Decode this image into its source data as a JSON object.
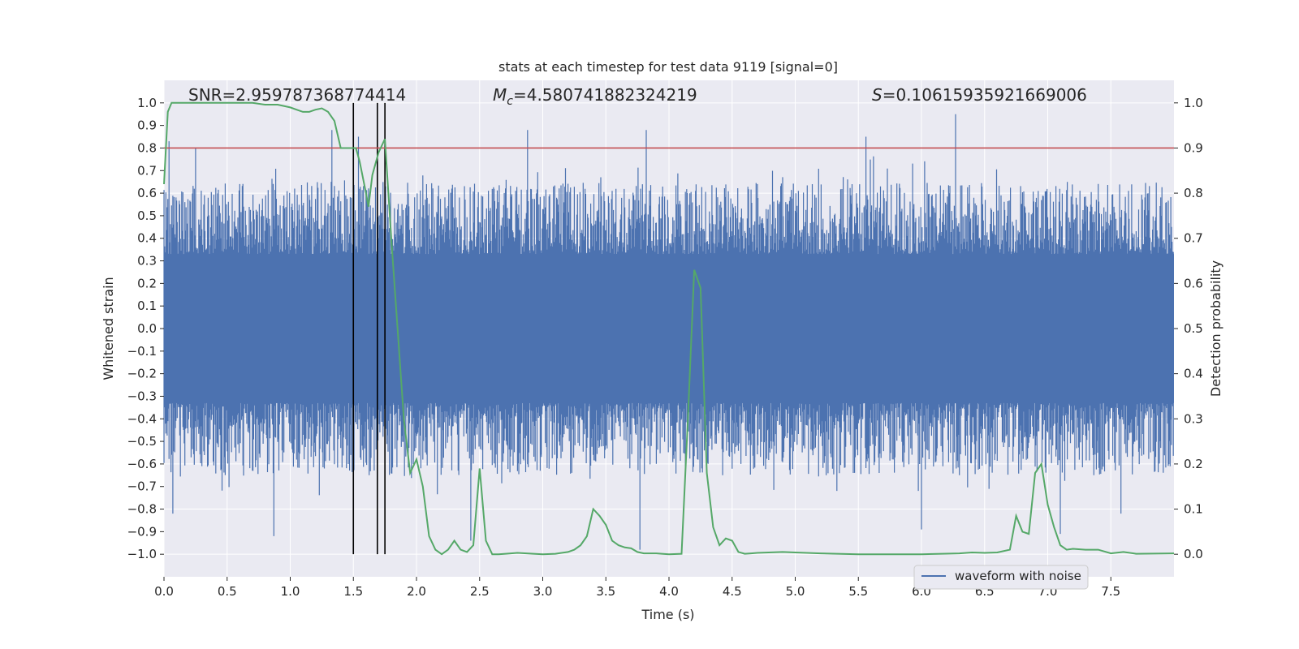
{
  "chart_data": {
    "type": "line",
    "title": "stats at each timestep for test data 9119 [signal=0]",
    "xlabel": "Time (s)",
    "ylabel_left": "Whitened strain",
    "ylabel_right": "Detection probability",
    "xlim": [
      0.0,
      8.0
    ],
    "ylim_left": [
      -1.1,
      1.1
    ],
    "ylim_right": [
      -0.05,
      1.05
    ],
    "x_ticks": [
      "0.0",
      "0.5",
      "1.0",
      "1.5",
      "2.0",
      "2.5",
      "3.0",
      "3.5",
      "4.0",
      "4.5",
      "5.0",
      "5.5",
      "6.0",
      "6.5",
      "7.0",
      "7.5"
    ],
    "x_tick_values": [
      0,
      0.5,
      1,
      1.5,
      2,
      2.5,
      3,
      3.5,
      4,
      4.5,
      5,
      5.5,
      6,
      6.5,
      7,
      7.5
    ],
    "y_left_ticks": [
      "1.0",
      "0.9",
      "0.8",
      "0.7",
      "0.6",
      "0.5",
      "0.4",
      "0.3",
      "0.2",
      "0.1",
      "0.0",
      "−0.1",
      "−0.2",
      "−0.3",
      "−0.4",
      "−0.5",
      "−0.6",
      "−0.7",
      "−0.8",
      "−0.9",
      "−1.0"
    ],
    "y_left_tick_values": [
      1,
      0.9,
      0.8,
      0.7,
      0.6,
      0.5,
      0.4,
      0.3,
      0.2,
      0.1,
      0,
      -0.1,
      -0.2,
      -0.3,
      -0.4,
      -0.5,
      -0.6,
      -0.7,
      -0.8,
      -0.9,
      -1.0
    ],
    "y_right_ticks": [
      "1.0",
      "0.9",
      "0.8",
      "0.7",
      "0.6",
      "0.5",
      "0.4",
      "0.3",
      "0.2",
      "0.1",
      "0.0"
    ],
    "y_right_tick_values": [
      1,
      0.9,
      0.8,
      0.7,
      0.6,
      0.5,
      0.4,
      0.3,
      0.2,
      0.1,
      0
    ],
    "annotations": {
      "snr": "SNR=2.959787368774414",
      "mc_symbol": "M",
      "mc_sub": "c",
      "mc_value": "=4.580741882324219",
      "s_symbol": "S",
      "s_value": "=0.10615935921669006"
    },
    "legend": {
      "label": "waveform with noise",
      "position": "lower-right"
    },
    "threshold": {
      "value": 0.9,
      "axis": "right",
      "color": "#c44e52"
    },
    "vertical_markers": [
      1.5,
      1.69,
      1.75
    ],
    "vertical_marker_range": [
      -1.0,
      1.0
    ],
    "series": [
      {
        "name": "waveform with noise",
        "axis": "left",
        "color": "#4c72b0",
        "envelope": {
          "core_amplitude": 0.33,
          "typical_peak": 0.6,
          "spike_tips": [
            [
              0.04,
              0.83
            ],
            [
              0.25,
              0.8
            ],
            [
              1.33,
              0.88
            ],
            [
              1.54,
              0.85
            ],
            [
              2.88,
              0.88
            ],
            [
              3.82,
              0.88
            ],
            [
              5.56,
              0.85
            ],
            [
              6.27,
              0.95
            ],
            [
              0.07,
              -0.82
            ],
            [
              0.87,
              -0.92
            ],
            [
              2.43,
              -0.94
            ],
            [
              3.77,
              -0.98
            ],
            [
              6.0,
              -0.89
            ],
            [
              7.1,
              -0.91
            ],
            [
              7.58,
              -0.82
            ]
          ]
        }
      },
      {
        "name": "detection probability",
        "axis": "right",
        "color": "#55a868",
        "x": [
          0.0,
          0.03,
          0.06,
          0.1,
          0.2,
          0.3,
          0.4,
          0.5,
          0.6,
          0.7,
          0.8,
          0.9,
          1.0,
          1.05,
          1.1,
          1.15,
          1.2,
          1.25,
          1.3,
          1.35,
          1.4,
          1.45,
          1.5,
          1.52,
          1.55,
          1.6,
          1.62,
          1.65,
          1.7,
          1.75,
          1.8,
          1.85,
          1.9,
          1.95,
          2.0,
          2.05,
          2.1,
          2.15,
          2.2,
          2.25,
          2.3,
          2.35,
          2.4,
          2.45,
          2.5,
          2.55,
          2.6,
          2.65,
          2.8,
          3.0,
          3.1,
          3.2,
          3.25,
          3.3,
          3.35,
          3.4,
          3.45,
          3.5,
          3.55,
          3.6,
          3.65,
          3.7,
          3.75,
          3.8,
          3.9,
          4.0,
          4.1,
          4.15,
          4.2,
          4.25,
          4.3,
          4.35,
          4.4,
          4.45,
          4.5,
          4.55,
          4.6,
          4.65,
          4.7,
          4.9,
          5.0,
          5.2,
          5.5,
          6.0,
          6.3,
          6.4,
          6.5,
          6.6,
          6.7,
          6.75,
          6.8,
          6.85,
          6.9,
          6.95,
          7.0,
          7.05,
          7.1,
          7.15,
          7.2,
          7.3,
          7.4,
          7.5,
          7.6,
          7.7,
          8.0
        ],
        "y": [
          0.82,
          0.98,
          1.0,
          1.0,
          1.0,
          1.0,
          1.0,
          1.0,
          1.0,
          1.0,
          0.996,
          0.996,
          0.99,
          0.985,
          0.98,
          0.98,
          0.985,
          0.988,
          0.98,
          0.96,
          0.9,
          0.9,
          0.9,
          0.9,
          0.87,
          0.8,
          0.77,
          0.84,
          0.89,
          0.92,
          0.7,
          0.5,
          0.3,
          0.18,
          0.21,
          0.15,
          0.04,
          0.01,
          0.0,
          0.01,
          0.03,
          0.01,
          0.005,
          0.02,
          0.19,
          0.03,
          0.0,
          0.0,
          0.003,
          0.0,
          0.001,
          0.005,
          0.01,
          0.02,
          0.04,
          0.1,
          0.085,
          0.065,
          0.03,
          0.02,
          0.015,
          0.013,
          0.005,
          0.002,
          0.002,
          0.0,
          0.001,
          0.3,
          0.63,
          0.59,
          0.18,
          0.06,
          0.02,
          0.035,
          0.03,
          0.005,
          0.001,
          0.002,
          0.003,
          0.005,
          0.004,
          0.002,
          0.0,
          0.0,
          0.002,
          0.004,
          0.003,
          0.004,
          0.01,
          0.085,
          0.05,
          0.045,
          0.18,
          0.2,
          0.11,
          0.06,
          0.02,
          0.01,
          0.012,
          0.01,
          0.01,
          0.002,
          0.005,
          0.001,
          0.002
        ]
      }
    ]
  }
}
